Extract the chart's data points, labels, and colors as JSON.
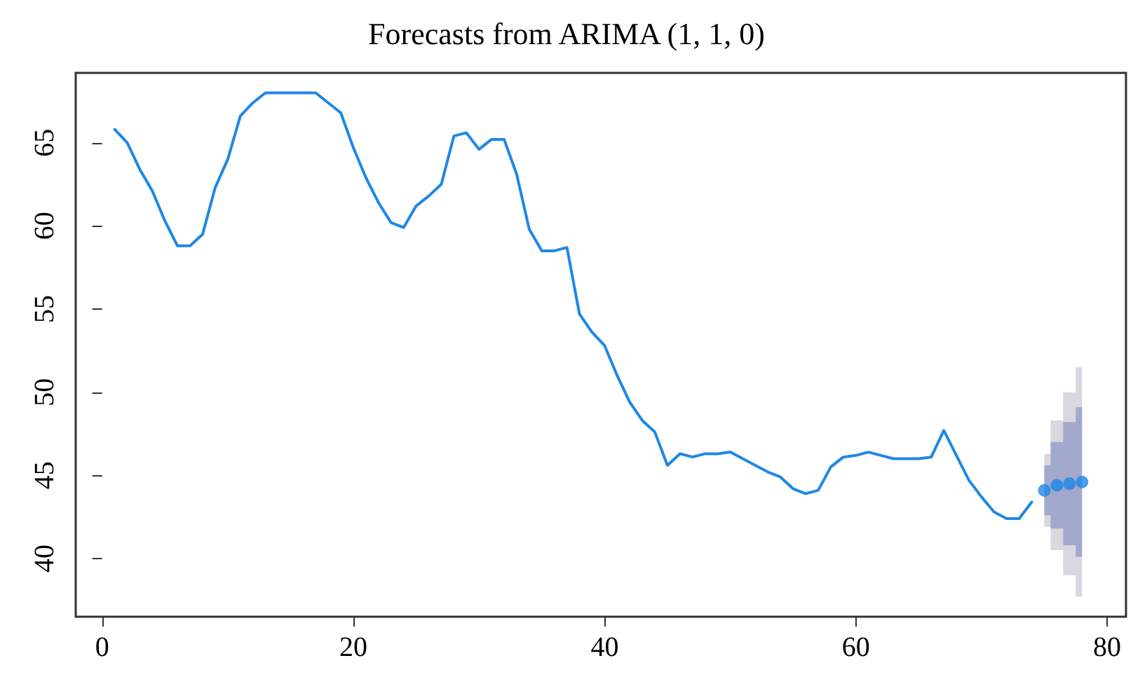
{
  "chart_data": {
    "type": "line",
    "title": "Forecasts from ARIMA (1, 1, 0)",
    "xlim": [
      -2.1,
      81.5
    ],
    "xticks": [
      0,
      20,
      40,
      60,
      80
    ],
    "ylim": [
      36.5,
      69.2
    ],
    "yticks": [
      40,
      45,
      50,
      55,
      60,
      65
    ],
    "grid": false,
    "line_style": "solid",
    "series": [
      {
        "color": "#1e88e5",
        "marker": "none",
        "x": [
          1,
          2,
          3,
          4,
          5,
          6,
          7,
          8,
          9,
          10,
          11,
          12,
          13,
          14,
          15,
          16,
          17,
          18,
          19,
          20,
          21,
          22,
          23,
          24,
          25,
          26,
          27,
          28,
          29,
          30,
          31,
          32,
          33,
          34,
          35,
          36,
          37,
          38,
          39,
          40,
          41,
          42,
          43,
          44,
          45,
          46,
          47,
          48,
          49,
          50,
          51,
          52,
          53,
          54,
          55,
          56,
          57,
          58,
          59,
          60,
          61,
          62,
          63,
          64,
          65,
          66,
          67,
          68,
          69,
          70,
          71,
          72,
          73,
          74
        ],
        "values": [
          65.8,
          65.0,
          63.4,
          62.1,
          60.3,
          58.8,
          58.8,
          59.5,
          62.3,
          64.0,
          66.6,
          67.4,
          68.0,
          68.0,
          68.0,
          68.0,
          68.0,
          67.4,
          66.8,
          64.7,
          62.9,
          61.4,
          60.2,
          59.9,
          61.2,
          61.8,
          62.5,
          65.4,
          65.6,
          64.6,
          65.2,
          65.2,
          63.1,
          59.8,
          58.5,
          58.5,
          58.7,
          54.7,
          53.6,
          52.8,
          51.0,
          49.4,
          48.3,
          47.6,
          45.6,
          46.3,
          46.1,
          46.3,
          46.3,
          46.4,
          46.0,
          45.6,
          45.2,
          44.9,
          44.2,
          43.9,
          44.1,
          45.5,
          46.1,
          46.2,
          46.4,
          46.2,
          46.0,
          46.0,
          46.0,
          46.1,
          47.7,
          46.2,
          44.7,
          43.7,
          42.8,
          42.4,
          42.4,
          43.4
        ]
      },
      {
        "color": "#d8d8de",
        "x": [
          75,
          76,
          77,
          78
        ],
        "values": [
          null,
          null,
          null,
          null
        ],
        "lower": [
          41.9,
          40.5,
          39.0,
          37.7
        ],
        "upper": [
          46.3,
          48.3,
          50.0,
          51.5
        ]
      },
      {
        "color": "#a3a8cd",
        "x": [
          75,
          76,
          77,
          78
        ],
        "values": [
          null,
          null,
          null,
          null
        ],
        "lower": [
          42.6,
          41.8,
          40.8,
          40.1
        ],
        "upper": [
          45.6,
          47.0,
          48.2,
          49.1
        ]
      },
      {
        "type": "scatter",
        "color": "#1b87e6",
        "marker": "circle",
        "x": [
          75,
          76,
          77,
          78
        ],
        "values": [
          44.1,
          44.4,
          44.5,
          44.6
        ]
      }
    ]
  }
}
